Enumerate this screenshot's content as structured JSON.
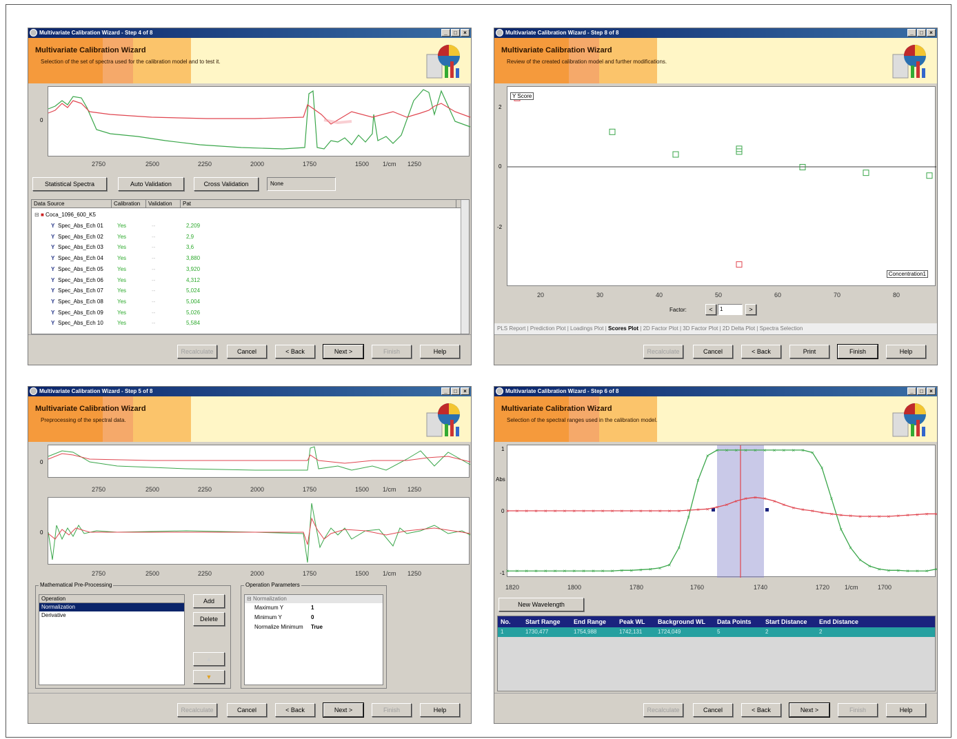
{
  "w1": {
    "title": "Multivariate Calibration Wizard - Step 4 of 8",
    "header_title": "Multivariate Calibration Wizard",
    "header_sub": "Selection of the set of spectra used for the calibration model and to test it.",
    "y_tick": "0",
    "x_ticks": [
      "2750",
      "2500",
      "2250",
      "2000",
      "1750",
      "1500",
      "1/cm",
      "1250"
    ],
    "buttons": {
      "stat": "Statistical Spectra",
      "auto": "Auto Validation",
      "cross": "Cross Validation",
      "none": "None"
    },
    "grid_headers": [
      "Data Source",
      "Calibration",
      "Validation",
      "Pat"
    ],
    "root": "Coca_1096_600_K5",
    "rows": [
      {
        "name": "Spec_Abs_Ech 01",
        "cal": "Yes",
        "val": "--",
        "pat": "2,209"
      },
      {
        "name": "Spec_Abs_Ech 02",
        "cal": "Yes",
        "val": "--",
        "pat": "2,9"
      },
      {
        "name": "Spec_Abs_Ech 03",
        "cal": "Yes",
        "val": "--",
        "pat": "3,6"
      },
      {
        "name": "Spec_Abs_Ech 04",
        "cal": "Yes",
        "val": "--",
        "pat": "3,880"
      },
      {
        "name": "Spec_Abs_Ech 05",
        "cal": "Yes",
        "val": "--",
        "pat": "3,920"
      },
      {
        "name": "Spec_Abs_Ech 06",
        "cal": "Yes",
        "val": "--",
        "pat": "4,312"
      },
      {
        "name": "Spec_Abs_Ech 07",
        "cal": "Yes",
        "val": "--",
        "pat": "5,024"
      },
      {
        "name": "Spec_Abs_Ech 08",
        "cal": "Yes",
        "val": "--",
        "pat": "5,004"
      },
      {
        "name": "Spec_Abs_Ech 09",
        "cal": "Yes",
        "val": "--",
        "pat": "5,026"
      },
      {
        "name": "Spec_Abs_Ech 10",
        "cal": "Yes",
        "val": "--",
        "pat": "5,584"
      }
    ],
    "footer": [
      "Recalculate",
      "Cancel",
      "< Back",
      "Next >",
      "Finish",
      "Help"
    ]
  },
  "w2": {
    "title": "Multivariate Calibration Wizard - Step 8 of 8",
    "header_title": "Multivariate Calibration Wizard",
    "header_sub": "Review of the created calibration model and further modifications.",
    "score_label": "Y Score",
    "conc_label": "Concentration1",
    "y_ticks": [
      "2",
      "0",
      "-2"
    ],
    "x_ticks": [
      "20",
      "30",
      "40",
      "50",
      "60",
      "70",
      "80"
    ],
    "factor_label": "Factor:",
    "factor_value": "1",
    "tabs": [
      "PLS Report",
      "Prediction Plot",
      "Loadings Plot",
      "Scores Plot",
      "2D Factor Plot",
      "3D Factor Plot",
      "2D Delta Plot",
      "Spectra Selection"
    ],
    "active_tab": "Scores Plot",
    "footer": [
      "Recalculate",
      "Cancel",
      "< Back",
      "Print",
      "Finish",
      "Help"
    ]
  },
  "w3": {
    "title": "Multivariate Calibration Wizard - Step 5 of 8",
    "header_title": "Multivariate Calibration Wizard",
    "header_sub": "Preprocessing of the spectral data.",
    "y_tick": "0",
    "x_ticks": [
      "2750",
      "2500",
      "2250",
      "2000",
      "1750",
      "1500",
      "1/cm",
      "1250"
    ],
    "math_group": "Mathematical Pre-Processing",
    "op_header": "Operation",
    "ops": [
      "Normalization",
      "Derivative"
    ],
    "add": "Add",
    "delete": "Delete",
    "params_group": "Operation Parameters",
    "params_node": "Normalization",
    "params": [
      {
        "k": "Maximum Y",
        "v": "1"
      },
      {
        "k": "Minimum Y",
        "v": "0"
      },
      {
        "k": "Normalize Minimum",
        "v": "True"
      }
    ],
    "footer": [
      "Recalculate",
      "Cancel",
      "< Back",
      "Next >",
      "Finish",
      "Help"
    ]
  },
  "w4": {
    "title": "Multivariate Calibration Wizard - Step 6 of 8",
    "header_title": "Multivariate Calibration Wizard",
    "header_sub": "Selection of the spectral ranges used in the calibration model.",
    "y_ticks": [
      "1",
      "Abs",
      "0",
      "-1"
    ],
    "x_ticks": [
      "1820",
      "1800",
      "1780",
      "1760",
      "1740",
      "1720",
      "1/cm",
      "1700"
    ],
    "new_wl": "New Wavelength",
    "table_headers": [
      "No.",
      "Start Range",
      "End Range",
      "Peak WL",
      "Background WL",
      "Data Points",
      "Start Distance",
      "End Distance"
    ],
    "table_row": [
      "1",
      "1730,477",
      "1754,988",
      "1742,131",
      "1724,049",
      "5",
      "2",
      "2"
    ],
    "footer": [
      "Recalculate",
      "Cancel",
      "< Back",
      "Next >",
      "Finish",
      "Help"
    ]
  },
  "colors": {
    "red_trace": "#e0454f",
    "green_trace": "#3aa64a",
    "title_bar": "#0a246a",
    "header_bg": "#fff6c6",
    "accent_orange": "#f59a3c"
  },
  "chart_data": [
    {
      "type": "scatter",
      "series": [
        {
          "values": [
            [
              30,
              1.1
            ],
            [
              40,
              0.3
            ],
            [
              50,
              0.5
            ],
            [
              50,
              0.4
            ],
            [
              60,
              -0.15
            ],
            [
              70,
              -0.35
            ],
            [
              80,
              -0.45
            ]
          ]
        },
        {
          "values": [
            [
              50,
              -3.6
            ],
            [
              15,
              2.3
            ]
          ]
        }
      ],
      "xlabel": "",
      "ylabel": "",
      "xlim": [
        15,
        80
      ],
      "ylim": [
        -4,
        2.5
      ]
    },
    {
      "type": "line",
      "x": [
        1825,
        1822,
        1819,
        1816,
        1813,
        1810,
        1807,
        1804,
        1801,
        1798,
        1795,
        1792,
        1789,
        1786,
        1783,
        1780,
        1777,
        1774,
        1771,
        1768,
        1765,
        1762,
        1759,
        1756,
        1753,
        1750,
        1747,
        1744,
        1741,
        1738,
        1735,
        1732,
        1729,
        1726,
        1723,
        1720,
        1717,
        1714,
        1711,
        1708,
        1705,
        1702,
        1699,
        1696,
        1693,
        1690
      ],
      "series": [
        {
          "values": [
            -0.98,
            -0.98,
            -0.98,
            -0.98,
            -0.98,
            -0.98,
            -0.98,
            -0.98,
            -0.98,
            -0.98,
            -0.98,
            -0.98,
            -0.97,
            -0.97,
            -0.96,
            -0.95,
            -0.93,
            -0.88,
            -0.6,
            -0.1,
            0.5,
            0.9,
            0.99,
            0.99,
            0.99,
            0.99,
            0.99,
            0.99,
            0.99,
            0.99,
            0.99,
            0.99,
            0.95,
            0.7,
            0.2,
            -0.3,
            -0.6,
            -0.8,
            -0.9,
            -0.95,
            -0.97,
            -0.97,
            -0.98,
            -0.98,
            -0.98,
            -0.95
          ]
        },
        {
          "values": [
            0,
            0,
            0,
            0,
            0,
            0,
            0,
            0,
            0,
            0,
            0,
            0,
            0,
            0,
            0,
            0,
            0,
            0,
            0,
            0.01,
            0.02,
            0.03,
            0.06,
            0.1,
            0.16,
            0.2,
            0.22,
            0.2,
            0.16,
            0.1,
            0.05,
            0.02,
            0.0,
            -0.03,
            -0.05,
            -0.07,
            -0.08,
            -0.09,
            -0.09,
            -0.09,
            -0.09,
            -0.08,
            -0.07,
            -0.06,
            -0.05,
            -0.05
          ]
        }
      ],
      "ylim": [
        -1,
        1
      ]
    }
  ]
}
